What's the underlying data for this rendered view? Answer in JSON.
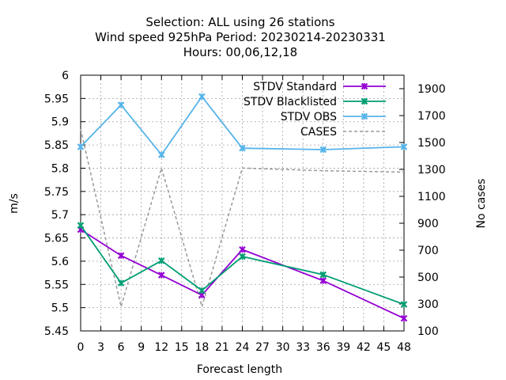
{
  "chart_data": {
    "type": "line",
    "title_lines": [
      "Selection: ALL using    26 stations",
      "Wind speed 925hPa   Period: 20230214-20230331",
      "Hours:  00,06,12,18"
    ],
    "xlabel": "Forecast length",
    "ylabel": "m/s",
    "y2label": "No cases",
    "xlim": [
      0,
      48
    ],
    "ylim": [
      5.45,
      6.0
    ],
    "y2lim": [
      100,
      2000
    ],
    "x_ticks": [
      0,
      3,
      6,
      9,
      12,
      15,
      18,
      21,
      24,
      27,
      30,
      33,
      36,
      39,
      42,
      45,
      48
    ],
    "y_ticks": [
      "5.45",
      "5.5",
      "5.55",
      "5.6",
      "5.65",
      "5.7",
      "5.75",
      "5.8",
      "5.85",
      "5.9",
      "5.95",
      "6"
    ],
    "y2_ticks": [
      100,
      300,
      500,
      700,
      900,
      1100,
      1300,
      1500,
      1700,
      1900
    ],
    "grid": true,
    "legend_position": "top-right",
    "series": [
      {
        "name": "STDV Standard",
        "axis": "y1",
        "color": "#9400d3",
        "style": "solid-marker",
        "x": [
          0,
          6,
          12,
          18,
          24,
          36,
          48
        ],
        "y": [
          5.668,
          5.612,
          5.57,
          5.527,
          5.625,
          5.558,
          5.477
        ]
      },
      {
        "name": "STDV Blacklisted",
        "axis": "y1",
        "color": "#009e73",
        "style": "solid-marker",
        "x": [
          0,
          6,
          12,
          18,
          24,
          36,
          48
        ],
        "y": [
          5.677,
          5.553,
          5.601,
          5.537,
          5.61,
          5.571,
          5.507
        ]
      },
      {
        "name": "STDV OBS",
        "axis": "y1",
        "color": "#56b4e9",
        "style": "solid-marker",
        "x": [
          0,
          6,
          12,
          18,
          24,
          36,
          48
        ],
        "y": [
          5.846,
          5.936,
          5.829,
          5.954,
          5.843,
          5.84,
          5.846
        ]
      },
      {
        "name": "CASES",
        "axis": "y2",
        "color": "#999999",
        "style": "dashed",
        "x": [
          0,
          6,
          12,
          18,
          24,
          36,
          48
        ],
        "y": [
          1600,
          280,
          1310,
          280,
          1310,
          1290,
          1280
        ]
      }
    ]
  }
}
